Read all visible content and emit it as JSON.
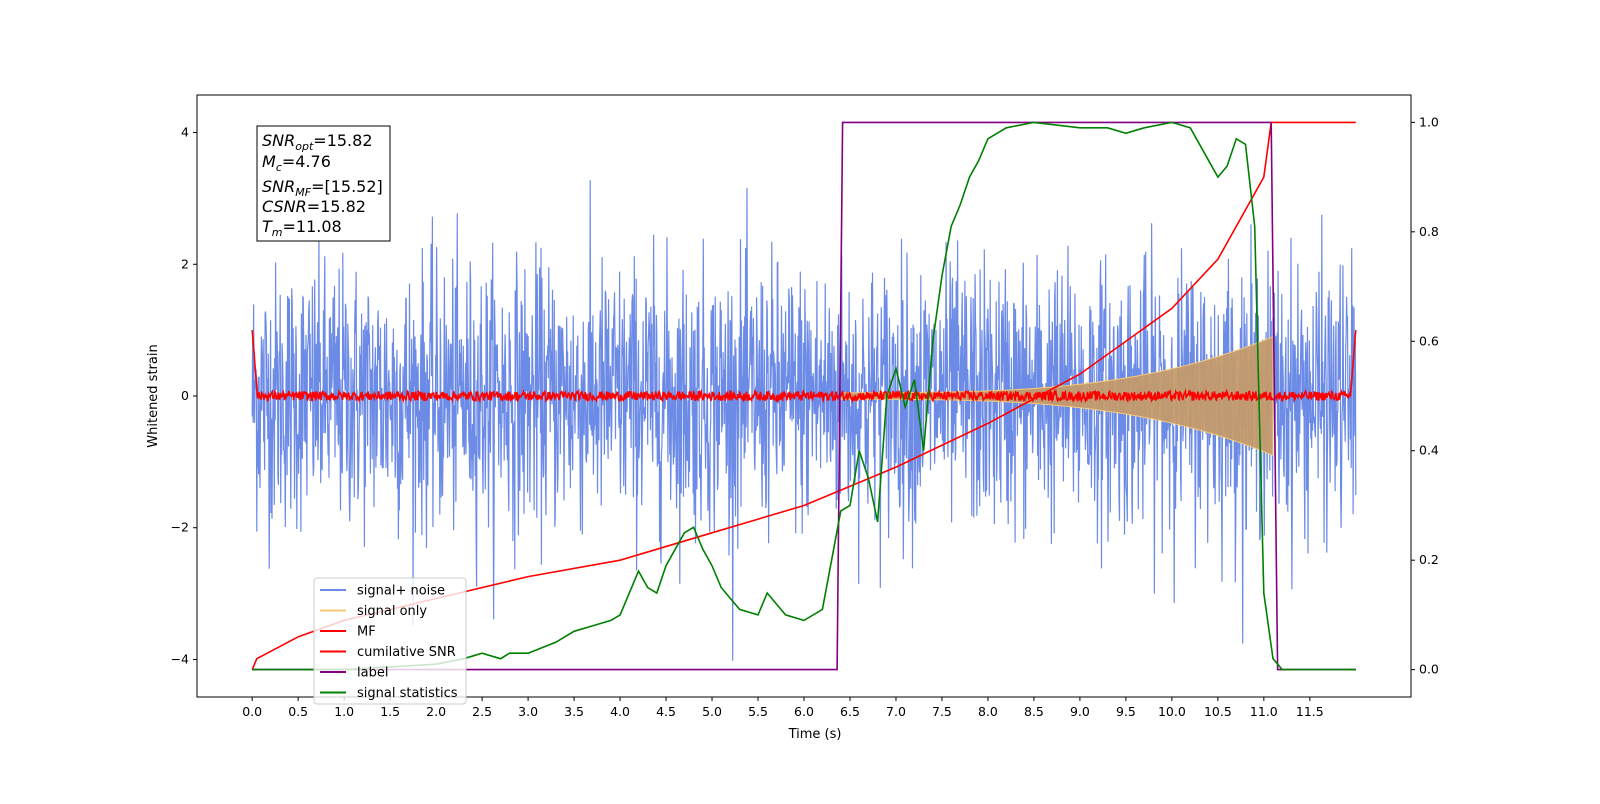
{
  "chart_data": {
    "type": "line",
    "xlabel": "Time (s)",
    "ylabel": "Whitened strain",
    "xlim": [
      -0.6,
      12.6
    ],
    "ylim": [
      -4.57,
      4.57
    ],
    "ylim_right": [
      -0.05,
      1.05
    ],
    "x_ticks": [
      "0.0",
      "0.5",
      "1.0",
      "1.5",
      "2.0",
      "2.5",
      "3.0",
      "3.5",
      "4.0",
      "4.5",
      "5.0",
      "5.5",
      "6.0",
      "6.5",
      "7.0",
      "7.5",
      "8.0",
      "8.5",
      "9.0",
      "9.5",
      "10.0",
      "10.5",
      "11.0",
      "11.5"
    ],
    "y_ticks_left": [
      "4",
      "2",
      "0",
      "−2",
      "−4"
    ],
    "y_ticks_right": [
      "1.0",
      "0.8",
      "0.6",
      "0.4",
      "0.2",
      "0.0"
    ],
    "grid": false,
    "legend_position": "lower left",
    "annotation": [
      {
        "symbol": "SNR",
        "sub": "opt",
        "value": "=15.82"
      },
      {
        "symbol": "M",
        "sub": "c",
        "value": "=4.76"
      },
      {
        "symbol": "SNR",
        "sub": "MF",
        "value": "=[15.52]"
      },
      {
        "symbol": "CSNR",
        "sub": "",
        "value": "=15.82"
      },
      {
        "symbol": "T",
        "sub": "m",
        "value": "=11.08"
      }
    ],
    "series": [
      {
        "name": "signal+ noise",
        "color": "#6c8be6",
        "axis": "left",
        "kind": "noise",
        "x_range": [
          0.0,
          12.0
        ],
        "std": 1.0,
        "envelope_max": 4.2
      },
      {
        "name": "signal only",
        "color": "#f5c97a",
        "axis": "left",
        "kind": "chirp_envelope",
        "x_start": 6.4,
        "x_end": 11.1,
        "amp_start": 0.05,
        "amp_end": 0.9
      },
      {
        "name": "MF",
        "color": "#ff0000",
        "axis": "left",
        "kind": "matched_filter",
        "x_range": [
          0.0,
          12.0
        ],
        "baseline": 0.0,
        "noise_amp": 0.12,
        "edge_value": 1.0
      },
      {
        "name": "cumilative SNR",
        "color": "#ff0000",
        "axis": "right",
        "x": [
          0.0,
          0.05,
          0.5,
          1,
          2,
          3,
          4,
          5,
          6,
          7,
          8,
          9,
          10,
          10.5,
          11,
          11.08,
          12.0
        ],
        "y": [
          0.0,
          0.02,
          0.06,
          0.09,
          0.13,
          0.17,
          0.2,
          0.25,
          0.3,
          0.37,
          0.45,
          0.54,
          0.66,
          0.75,
          0.9,
          1.0,
          1.0
        ]
      },
      {
        "name": "label",
        "color": "#800080",
        "axis": "right",
        "x": [
          0.0,
          6.36,
          6.42,
          11.08,
          11.15,
          12.0
        ],
        "y": [
          0.0,
          0.0,
          1.0,
          1.0,
          0.0,
          0.0
        ]
      },
      {
        "name": "signal statistics",
        "color": "#008000",
        "axis": "right",
        "x": [
          0.0,
          1.0,
          2.0,
          2.3,
          2.5,
          2.7,
          2.8,
          3.0,
          3.3,
          3.5,
          3.7,
          3.9,
          4.0,
          4.2,
          4.3,
          4.4,
          4.5,
          4.6,
          4.7,
          4.8,
          4.9,
          5.0,
          5.1,
          5.2,
          5.3,
          5.5,
          5.6,
          5.7,
          5.8,
          6.0,
          6.2,
          6.3,
          6.4,
          6.5,
          6.6,
          6.7,
          6.8,
          6.9,
          7.0,
          7.1,
          7.2,
          7.3,
          7.4,
          7.5,
          7.6,
          7.7,
          7.8,
          7.9,
          8.0,
          8.2,
          8.5,
          9.0,
          9.3,
          9.5,
          9.7,
          10.0,
          10.2,
          10.4,
          10.5,
          10.6,
          10.7,
          10.8,
          10.9,
          11.0,
          11.1,
          11.2,
          11.5,
          12.0
        ],
        "y": [
          0.0,
          0.0,
          0.01,
          0.02,
          0.03,
          0.02,
          0.03,
          0.03,
          0.05,
          0.07,
          0.08,
          0.09,
          0.1,
          0.18,
          0.15,
          0.14,
          0.19,
          0.22,
          0.25,
          0.26,
          0.22,
          0.19,
          0.15,
          0.13,
          0.11,
          0.1,
          0.14,
          0.12,
          0.1,
          0.09,
          0.11,
          0.2,
          0.29,
          0.3,
          0.4,
          0.35,
          0.27,
          0.5,
          0.55,
          0.48,
          0.53,
          0.4,
          0.6,
          0.72,
          0.81,
          0.85,
          0.9,
          0.93,
          0.97,
          0.99,
          1.0,
          0.99,
          0.99,
          0.98,
          0.99,
          1.0,
          0.99,
          0.93,
          0.9,
          0.92,
          0.97,
          0.96,
          0.81,
          0.14,
          0.02,
          0.0,
          0.0,
          0.0
        ]
      }
    ]
  }
}
